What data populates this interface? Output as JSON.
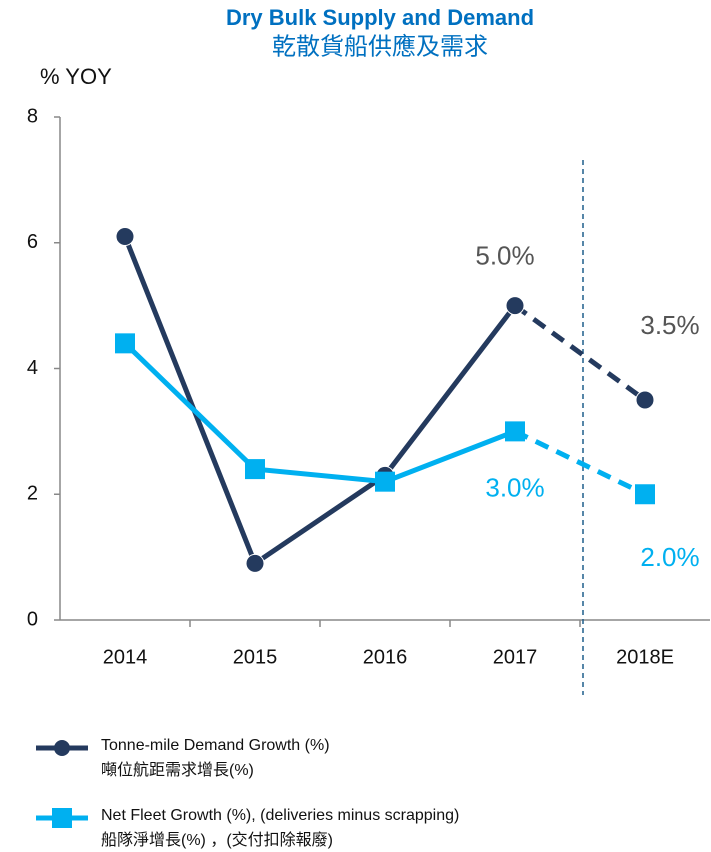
{
  "chart_data": {
    "type": "line",
    "title": "Dry Bulk Supply and Demand",
    "subtitle": "乾散貨船供應及需求",
    "y_label": "% YOY",
    "categories": [
      "2014",
      "2015",
      "2016",
      "2017",
      "2018E"
    ],
    "series": [
      {
        "name": "Tonne-mile Demand Growth (%)",
        "name_zh": "噸位航距需求增長(%)",
        "color": "#243a5e",
        "label_color": "#555555",
        "marker": "circle",
        "values": [
          6.1,
          0.9,
          2.3,
          5.0,
          3.5
        ],
        "value_labels": [
          null,
          null,
          null,
          "5.0%",
          "3.5%"
        ]
      },
      {
        "name": "Net Fleet Growth (%), (deliveries minus scrapping)",
        "name_zh": "船隊淨增長(%) ，(交付扣除報廢)",
        "color": "#00b0f0",
        "label_color": "#00b0f0",
        "marker": "square",
        "values": [
          4.4,
          2.4,
          2.2,
          3.0,
          2.0
        ],
        "value_labels": [
          null,
          null,
          null,
          "3.0%",
          "2.0%"
        ]
      }
    ],
    "ylim": [
      0,
      8
    ],
    "yticks": [
      0,
      2,
      4,
      6,
      8
    ],
    "grid": false
  }
}
